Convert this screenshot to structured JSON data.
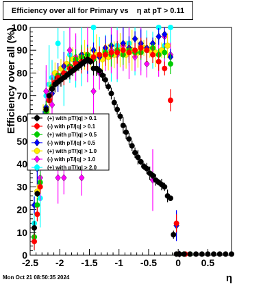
{
  "title": "Efficiency over all for Primary vs    η at pT > 0.11",
  "timestamp": "Mon Oct 21 08:50:35 2024",
  "chart_data": {
    "type": "scatter",
    "xlabel": "η",
    "ylabel": "Efficiency over all (%)",
    "xlim": [
      -2.5,
      0.9
    ],
    "ylim": [
      0,
      100
    ],
    "x_ticks": [
      "-2.5",
      "-2",
      "-1.5",
      "-1",
      "-0.5",
      "0",
      "0.5"
    ],
    "y_ticks": [
      "0",
      "10",
      "20",
      "30",
      "40",
      "50",
      "60",
      "70",
      "80",
      "90",
      "100"
    ],
    "legend_position": "left-middle",
    "series": [
      {
        "name": "(+) with pT/|q| > 0.1",
        "color": "#000000",
        "marker": "circle",
        "x": [
          -2.43,
          -2.38,
          -2.33,
          -2.28,
          -2.23,
          -2.18,
          -2.13,
          -2.08,
          -2.03,
          -1.98,
          -1.93,
          -1.88,
          -1.83,
          -1.78,
          -1.73,
          -1.68,
          -1.63,
          -1.58,
          -1.53,
          -1.48,
          -1.43,
          -1.38,
          -1.33,
          -1.28,
          -1.23,
          -1.18,
          -1.13,
          -1.08,
          -1.03,
          -0.98,
          -0.93,
          -0.88,
          -0.83,
          -0.78,
          -0.73,
          -0.68,
          -0.63,
          -0.58,
          -0.53,
          -0.48,
          -0.43,
          -0.38,
          -0.33,
          -0.28,
          -0.23,
          -0.18,
          -0.13,
          -0.08,
          -0.03,
          0.02,
          0.1,
          0.2,
          0.3,
          0.4,
          0.5,
          0.6,
          0.7,
          0.8,
          0.9
        ],
        "y": [
          12,
          27,
          44,
          56,
          64,
          70,
          73,
          75,
          76,
          77,
          78,
          79,
          80,
          81,
          82,
          83,
          84,
          85,
          86,
          85,
          82,
          82,
          81,
          79,
          77,
          74,
          71,
          67,
          64,
          61,
          57,
          54,
          51,
          48,
          45,
          43,
          41,
          39,
          38,
          36,
          35,
          33,
          32,
          31,
          30,
          26,
          25,
          9,
          0.5,
          0.5,
          0.5,
          0.5,
          0.5,
          0.5,
          0.5,
          0.5,
          0.5,
          0.5,
          0.5
        ]
      },
      {
        "name": "(-) with pT/|q| > 0.1",
        "color": "#ff0000",
        "marker": "circle",
        "x": [
          -2.43,
          -2.38,
          -2.33,
          -2.28,
          -2.23,
          -2.18,
          -2.13,
          -2.08,
          -2.03,
          -1.93,
          -1.83,
          -1.73,
          -1.63,
          -1.53,
          -1.43,
          -1.33,
          -1.23,
          -1.13,
          -1.03,
          -0.93,
          -0.83,
          -0.73,
          -0.63,
          -0.53,
          -0.43,
          -0.33,
          -0.23,
          -0.13,
          -0.03,
          0.02,
          0.12
        ],
        "y": [
          6,
          18,
          30,
          48,
          60,
          68,
          73,
          76,
          78,
          80,
          82,
          84,
          85,
          86,
          87,
          88,
          88,
          89,
          89,
          90,
          89,
          90,
          91,
          90,
          88,
          85,
          82,
          68,
          14,
          0.5,
          0.5
        ]
      },
      {
        "name": "(+) with pT/|q| > 0.5",
        "color": "#00cc00",
        "marker": "circle",
        "x": [
          -2.43,
          -2.38,
          -2.33,
          -2.28,
          -2.23,
          -2.18,
          -2.13,
          -2.03,
          -1.93,
          -1.83,
          -1.73,
          -1.63,
          -1.53,
          -1.43,
          -1.33,
          -1.23,
          -1.13,
          -1.03,
          -0.93,
          -0.83,
          -0.73,
          -0.63,
          -0.53,
          -0.43,
          -0.33,
          -0.23,
          -0.13,
          0.02,
          0.1,
          0.2
        ],
        "y": [
          8,
          22,
          32,
          52,
          63,
          68,
          74,
          79,
          80,
          83,
          86,
          87,
          88,
          86,
          88,
          89,
          88,
          90,
          88,
          90,
          89,
          89,
          90,
          91,
          88,
          89,
          84,
          0.5,
          0.5,
          0.5
        ]
      },
      {
        "name": "(-) with pT/|q| > 0.5",
        "color": "#0000ff",
        "marker": "diamond",
        "x": [
          -2.43,
          -2.38,
          -2.28,
          -2.23,
          -2.13,
          -2.03,
          -1.93,
          -1.83,
          -1.73,
          -1.63,
          -1.53,
          -1.43,
          -1.33,
          -1.23,
          -1.13,
          -1.03,
          -0.93,
          -0.83,
          -0.73,
          -0.63,
          -0.53,
          -0.43,
          -0.33,
          -0.23,
          -0.13,
          -0.03,
          0.02
        ],
        "y": [
          22,
          38,
          58,
          65,
          71,
          78,
          83,
          82,
          85,
          88,
          86,
          90,
          87,
          91,
          92,
          90,
          93,
          91,
          95,
          93,
          91,
          93,
          96,
          97,
          87,
          13,
          0.5
        ]
      },
      {
        "name": "(+) with pT/|q| > 1.0",
        "color": "#ffee00",
        "marker": "circle",
        "x": [
          -2.38,
          -2.28,
          -2.18,
          -2.08,
          -1.98,
          -1.88,
          -1.78,
          -1.68,
          -1.58,
          -1.48,
          -1.38,
          -1.28,
          -1.18,
          -1.08,
          -0.98,
          -0.88,
          -0.78,
          -0.68,
          -0.58,
          -0.48,
          -0.38,
          -0.28,
          -0.18
        ],
        "y": [
          28,
          60,
          68,
          80,
          82,
          84,
          86,
          85,
          88,
          87,
          88,
          86,
          87,
          88,
          90,
          88,
          90,
          89,
          91,
          90,
          89,
          90,
          92
        ]
      },
      {
        "name": "(-) with pT/|q| > 1.0",
        "color": "#ff00ff",
        "marker": "diamond",
        "x": [
          -2.38,
          -2.33,
          -2.23,
          -2.13,
          -2.03,
          -1.93,
          -1.83,
          -1.73,
          -1.63,
          -1.53,
          -1.43,
          -1.33,
          -1.23,
          -1.13,
          -1.03,
          -0.93,
          -0.83,
          -0.73,
          -0.63,
          -0.53,
          -0.43,
          -0.33,
          -0.23,
          -0.13
        ],
        "y": [
          42,
          34,
          72,
          66,
          34,
          34,
          90,
          87,
          34,
          88,
          72,
          80,
          88,
          90,
          88,
          92,
          90,
          87,
          92,
          84,
          33,
          88,
          96,
          88
        ]
      },
      {
        "name": "(+) with pT/|q| > 2.0",
        "color": "#00ffff",
        "marker": "circle",
        "x": [
          -2.43,
          -2.33,
          -2.28,
          -2.23,
          -2.18,
          -2.13,
          -2.03,
          -1.93,
          -1.83,
          -1.73,
          -1.63,
          -1.53,
          -1.43,
          -1.33,
          -1.23,
          -1.13,
          -1.03,
          -0.93,
          -0.83,
          -0.73,
          -0.63,
          -0.53,
          -0.43,
          -0.33,
          -0.23,
          -0.13,
          0.02
        ],
        "y": [
          14,
          25,
          58,
          70,
          75,
          78,
          93,
          82,
          88,
          85,
          88,
          86,
          100,
          88,
          90,
          88,
          92,
          88,
          93,
          90,
          92,
          90,
          90,
          100,
          92,
          100,
          0.5
        ]
      }
    ]
  }
}
